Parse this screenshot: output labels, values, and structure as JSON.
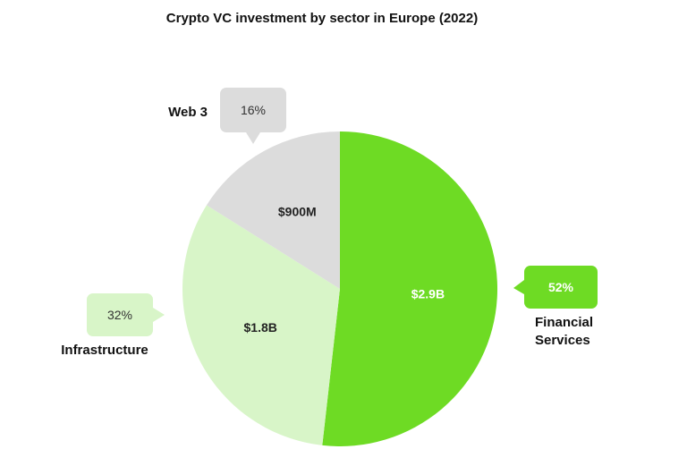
{
  "chart_data": {
    "type": "pie",
    "title": "Crypto VC investment by sector in Europe (2022)",
    "slices": [
      {
        "label": "Financial Services",
        "label_lines": [
          "Financial",
          "Services"
        ],
        "value": 2.9,
        "value_label": "$2.9B",
        "percent_label": "52%",
        "color": "#6edb24",
        "label_color": "#ffffff"
      },
      {
        "label": "Infrastructure",
        "label_lines": [
          "Infrastructure"
        ],
        "value": 1.8,
        "value_label": "$1.8B",
        "percent_label": "32%",
        "color": "#d8f5c8",
        "label_color": "#222222"
      },
      {
        "label": "Web 3",
        "label_lines": [
          "Web 3"
        ],
        "value": 0.9,
        "value_label": "$900M",
        "percent_label": "16%",
        "color": "#dcdcdc",
        "label_color": "#222222"
      }
    ]
  }
}
